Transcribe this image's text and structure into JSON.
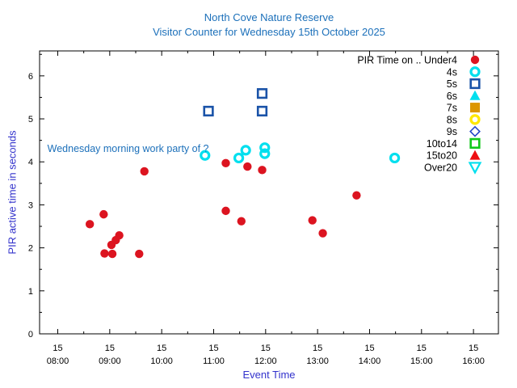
{
  "window": {
    "title_line1": "North Cove Nature Reserve",
    "title_line2": "Visitor Counter for Wednesday 15th October 2025"
  },
  "colors": {
    "title_blue": "#1c70ba",
    "axis_label_blue": "#3232cc",
    "tick_text": "#000000",
    "axis_line": "#000000",
    "red": "#dc1420",
    "cyan": "#00dfee",
    "navy": "#1a53a8",
    "orange": "#dc9600",
    "yellow": "#ffe800",
    "royal_blue": "#2446c8",
    "green": "#12c81c",
    "bright_red": "#ee0e12"
  },
  "chart_data": {
    "type": "scatter",
    "title": "North Cove Nature Reserve",
    "subtitle": "Visitor Counter for Wednesday 15th October 2025",
    "xlabel": "Event Time",
    "ylabel": "PIR active time in seconds",
    "x_unit": "time of day (date 15, HH:MM)",
    "xlim_hours": [
      7.65,
      16.48
    ],
    "ylim": [
      0,
      6.58
    ],
    "grid": false,
    "legend_position": "top-right-inside",
    "x_ticks": [
      {
        "day": "15",
        "time": "08:00",
        "hour": 8
      },
      {
        "day": "15",
        "time": "09:00",
        "hour": 9
      },
      {
        "day": "15",
        "time": "10:00",
        "hour": 10
      },
      {
        "day": "15",
        "time": "11:00",
        "hour": 11
      },
      {
        "day": "15",
        "time": "12:00",
        "hour": 12
      },
      {
        "day": "15",
        "time": "13:00",
        "hour": 13
      },
      {
        "day": "15",
        "time": "14:00",
        "hour": 14
      },
      {
        "day": "15",
        "time": "15:00",
        "hour": 15
      },
      {
        "day": "15",
        "time": "16:00",
        "hour": 16
      }
    ],
    "y_ticks": [
      0,
      1,
      2,
      3,
      4,
      5,
      6
    ],
    "annotation": {
      "text": "Wednesday morning work party of ?",
      "x_hour": 7.8,
      "y": 4.31
    },
    "legend": [
      {
        "label": "PIR Time on .. Under4",
        "marker": "circle-filled",
        "color": "#dc1420"
      },
      {
        "label": "4s",
        "marker": "circle-open",
        "color": "#00dfee"
      },
      {
        "label": "5s",
        "marker": "square-open",
        "color": "#1a53a8"
      },
      {
        "label": "6s",
        "marker": "triangle-up-filled",
        "color": "#00dfee"
      },
      {
        "label": "7s",
        "marker": "square-filled",
        "color": "#dc9600"
      },
      {
        "label": "8s",
        "marker": "circle-open",
        "color": "#ffe800"
      },
      {
        "label": "9s",
        "marker": "diamond-open",
        "color": "#2446c8"
      },
      {
        "label": "10to14",
        "marker": "square-open",
        "color": "#12c81c"
      },
      {
        "label": "15to20",
        "marker": "triangle-up-filled",
        "color": "#ee0e12"
      },
      {
        "label": "Over20",
        "marker": "triangle-down-open",
        "color": "#00dfee"
      }
    ],
    "series": [
      {
        "name": "PIR Time on .. Under4",
        "marker": "circle-filled",
        "color": "#dc1420",
        "points": [
          {
            "time": "08:37",
            "seconds": 2.55
          },
          {
            "time": "08:53",
            "seconds": 2.78
          },
          {
            "time": "08:54",
            "seconds": 1.87
          },
          {
            "time": "09:02",
            "seconds": 2.07
          },
          {
            "time": "09:03",
            "seconds": 1.86
          },
          {
            "time": "09:07",
            "seconds": 2.18
          },
          {
            "time": "09:11",
            "seconds": 2.29
          },
          {
            "time": "09:34",
            "seconds": 1.86
          },
          {
            "time": "09:40",
            "seconds": 3.78
          },
          {
            "time": "11:14",
            "seconds": 2.86
          },
          {
            "time": "11:14",
            "seconds": 3.97
          },
          {
            "time": "11:32",
            "seconds": 2.62
          },
          {
            "time": "11:39",
            "seconds": 3.89
          },
          {
            "time": "11:56",
            "seconds": 3.81
          },
          {
            "time": "12:54",
            "seconds": 2.64
          },
          {
            "time": "13:06",
            "seconds": 2.34
          },
          {
            "time": "13:45",
            "seconds": 3.22
          }
        ]
      },
      {
        "name": "4s",
        "marker": "circle-open",
        "color": "#00dfee",
        "points": [
          {
            "time": "10:50",
            "seconds": 4.15
          },
          {
            "time": "11:29",
            "seconds": 4.09
          },
          {
            "time": "11:37",
            "seconds": 4.27
          },
          {
            "time": "11:59",
            "seconds": 4.33
          },
          {
            "time": "11:59",
            "seconds": 4.19
          },
          {
            "time": "14:29",
            "seconds": 4.09
          }
        ]
      },
      {
        "name": "5s",
        "marker": "square-open",
        "color": "#1a53a8",
        "points": [
          {
            "time": "10:54",
            "seconds": 5.18
          },
          {
            "time": "11:56",
            "seconds": 5.59
          },
          {
            "time": "11:56",
            "seconds": 5.18
          }
        ]
      },
      {
        "name": "6s",
        "marker": "triangle-up-filled",
        "color": "#00dfee",
        "points": []
      },
      {
        "name": "7s",
        "marker": "square-filled",
        "color": "#dc9600",
        "points": []
      },
      {
        "name": "8s",
        "marker": "circle-open",
        "color": "#ffe800",
        "points": []
      },
      {
        "name": "9s",
        "marker": "diamond-open",
        "color": "#2446c8",
        "points": []
      },
      {
        "name": "10to14",
        "marker": "square-open",
        "color": "#12c81c",
        "points": []
      },
      {
        "name": "15to20",
        "marker": "triangle-up-filled",
        "color": "#ee0e12",
        "points": []
      },
      {
        "name": "Over20",
        "marker": "triangle-down-open",
        "color": "#00dfee",
        "points": []
      }
    ]
  }
}
